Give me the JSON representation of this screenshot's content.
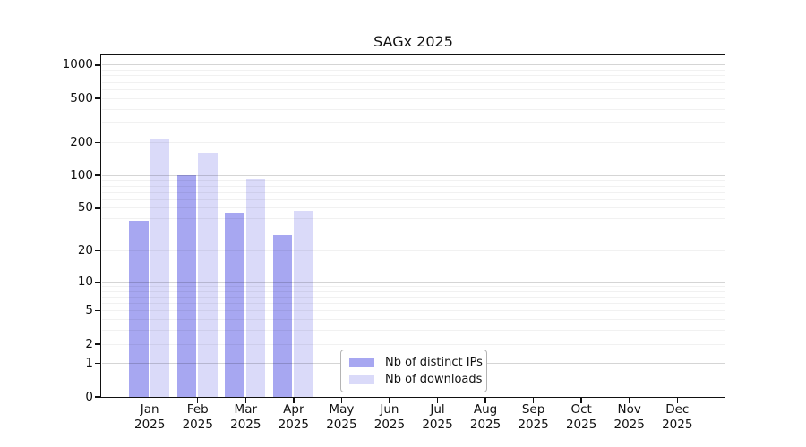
{
  "title": "SAGx 2025",
  "chart_data": {
    "type": "bar",
    "title": "SAGx 2025",
    "categories": [
      "Jan",
      "Feb",
      "Mar",
      "Apr",
      "May",
      "Jun",
      "Jul",
      "Aug",
      "Sep",
      "Oct",
      "Nov",
      "Dec"
    ],
    "category_year": "2025",
    "series": [
      {
        "name": "Nb of distinct IPs",
        "color": "#a7a7f1",
        "values": [
          38,
          100,
          45,
          28,
          0,
          0,
          0,
          0,
          0,
          0,
          0,
          0
        ]
      },
      {
        "name": "Nb of downloads",
        "color": "#dadaf9",
        "values": [
          213,
          160,
          93,
          47,
          0,
          0,
          0,
          0,
          0,
          0,
          0,
          0
        ]
      }
    ],
    "xlabel": "",
    "ylabel": "",
    "yscale": "log1p",
    "yticks": [
      0,
      1,
      2,
      5,
      10,
      20,
      50,
      100,
      200,
      500,
      1000
    ],
    "ylim": [
      0,
      1260
    ],
    "grid": {
      "major_at": [
        1,
        10,
        100,
        1000
      ],
      "major_color": "#d5d5d5",
      "minor_color": "#f0f0f0"
    },
    "axis_color": "#111111",
    "legend": {
      "position": "lower-center",
      "entries": [
        "Nb of distinct IPs",
        "Nb of downloads"
      ]
    }
  }
}
